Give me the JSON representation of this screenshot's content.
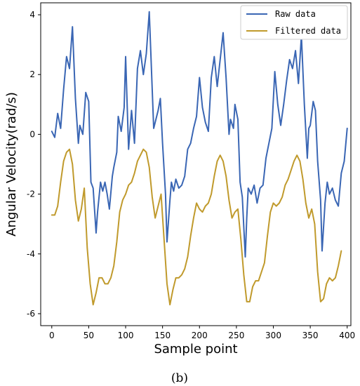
{
  "chart_data": {
    "type": "line",
    "xlabel": "Sample point",
    "ylabel": "Angular Velocity(rad/s)",
    "xlim": [
      -15,
      405
    ],
    "ylim": [
      -6.4,
      4.4
    ],
    "xticks": [
      0,
      50,
      100,
      150,
      200,
      250,
      300,
      350,
      400
    ],
    "yticks": [
      -6,
      -4,
      -2,
      0,
      2,
      4
    ],
    "grid": false,
    "legend_position": "top-right",
    "caption": "(b)",
    "series": [
      {
        "name": "Raw data",
        "color": "#3a66b4",
        "x": [
          0,
          4,
          8,
          12,
          16,
          20,
          24,
          28,
          32,
          36,
          38,
          42,
          46,
          50,
          53,
          56,
          60,
          62,
          66,
          69,
          72,
          75,
          78,
          82,
          84,
          88,
          90,
          94,
          98,
          100,
          104,
          108,
          112,
          116,
          120,
          124,
          128,
          132,
          136,
          138,
          140,
          144,
          147,
          150,
          154,
          156,
          160,
          162,
          165,
          168,
          172,
          176,
          180,
          184,
          188,
          192,
          196,
          200,
          204,
          208,
          212,
          216,
          220,
          224,
          228,
          232,
          236,
          240,
          242,
          246,
          248,
          252,
          255,
          258,
          262,
          264,
          266,
          270,
          274,
          278,
          282,
          286,
          290,
          294,
          298,
          302,
          306,
          310,
          314,
          318,
          322,
          326,
          330,
          334,
          338,
          342,
          346,
          348,
          350,
          354,
          357,
          360,
          364,
          366,
          370,
          373,
          376,
          380,
          384,
          388,
          392,
          396,
          400
        ],
        "values": [
          0.1,
          -0.1,
          0.7,
          0.2,
          1.5,
          2.6,
          2.2,
          3.6,
          1.2,
          -0.3,
          0.3,
          0.0,
          1.4,
          1.1,
          -1.6,
          -1.8,
          -3.3,
          -2.6,
          -1.6,
          -1.9,
          -1.6,
          -2.0,
          -2.5,
          -1.4,
          -1.1,
          -0.6,
          0.6,
          0.1,
          0.9,
          2.6,
          -0.5,
          0.8,
          -0.3,
          2.2,
          2.8,
          2.0,
          2.7,
          4.1,
          1.5,
          0.2,
          0.4,
          0.8,
          1.2,
          -0.3,
          -2.0,
          -3.6,
          -2.2,
          -1.6,
          -1.9,
          -1.5,
          -1.8,
          -1.7,
          -1.4,
          -0.5,
          -0.3,
          0.2,
          0.6,
          1.9,
          0.9,
          0.4,
          0.1,
          1.9,
          2.6,
          1.6,
          2.5,
          3.4,
          1.9,
          0.0,
          0.5,
          0.2,
          1.0,
          0.5,
          -1.6,
          -2.1,
          -4.1,
          -2.8,
          -1.8,
          -2.0,
          -1.7,
          -2.3,
          -1.8,
          -1.7,
          -0.8,
          -0.3,
          0.2,
          2.1,
          1.0,
          0.3,
          1.0,
          1.8,
          2.5,
          2.2,
          2.8,
          1.7,
          3.3,
          1.0,
          -0.8,
          0.2,
          0.3,
          1.1,
          0.8,
          -0.9,
          -2.2,
          -3.9,
          -2.3,
          -1.6,
          -2.0,
          -1.8,
          -2.2,
          -2.4,
          -1.3,
          -0.9,
          0.2
        ]
      },
      {
        "name": "Filtered data",
        "color": "#c09a2c",
        "x": [
          0,
          4,
          8,
          12,
          16,
          20,
          24,
          28,
          32,
          36,
          40,
          44,
          48,
          52,
          56,
          60,
          64,
          68,
          72,
          76,
          80,
          84,
          88,
          92,
          96,
          100,
          104,
          108,
          112,
          116,
          120,
          124,
          128,
          132,
          136,
          140,
          144,
          148,
          152,
          156,
          160,
          164,
          168,
          172,
          176,
          180,
          184,
          188,
          192,
          196,
          200,
          204,
          208,
          212,
          216,
          220,
          224,
          228,
          232,
          236,
          240,
          244,
          248,
          252,
          256,
          260,
          264,
          268,
          272,
          276,
          280,
          284,
          288,
          292,
          296,
          300,
          304,
          308,
          312,
          316,
          320,
          324,
          328,
          332,
          336,
          340,
          344,
          348,
          352,
          356,
          360,
          364,
          368,
          372,
          376,
          380,
          384,
          388,
          392
        ],
        "values": [
          -2.7,
          -2.7,
          -2.4,
          -1.6,
          -0.9,
          -0.6,
          -0.5,
          -1.0,
          -2.2,
          -2.9,
          -2.5,
          -1.8,
          -3.8,
          -5.0,
          -5.7,
          -5.3,
          -4.8,
          -4.8,
          -5.0,
          -5.0,
          -4.8,
          -4.4,
          -3.6,
          -2.6,
          -2.2,
          -2.0,
          -1.7,
          -1.6,
          -1.3,
          -0.9,
          -0.7,
          -0.5,
          -0.6,
          -1.1,
          -2.1,
          -2.8,
          -2.4,
          -2.0,
          -3.5,
          -5.0,
          -5.7,
          -5.2,
          -4.8,
          -4.8,
          -4.7,
          -4.5,
          -4.1,
          -3.4,
          -2.8,
          -2.3,
          -2.5,
          -2.6,
          -2.4,
          -2.3,
          -2.0,
          -1.4,
          -0.9,
          -0.7,
          -0.9,
          -1.4,
          -2.2,
          -2.8,
          -2.6,
          -2.5,
          -3.5,
          -4.7,
          -5.6,
          -5.6,
          -5.1,
          -4.9,
          -4.9,
          -4.6,
          -4.3,
          -3.4,
          -2.6,
          -2.3,
          -2.4,
          -2.3,
          -2.1,
          -1.7,
          -1.5,
          -1.2,
          -0.9,
          -0.7,
          -0.9,
          -1.5,
          -2.3,
          -2.8,
          -2.5,
          -3.0,
          -4.6,
          -5.6,
          -5.5,
          -5.0,
          -4.8,
          -4.9,
          -4.8,
          -4.4,
          -3.9
        ]
      }
    ]
  }
}
